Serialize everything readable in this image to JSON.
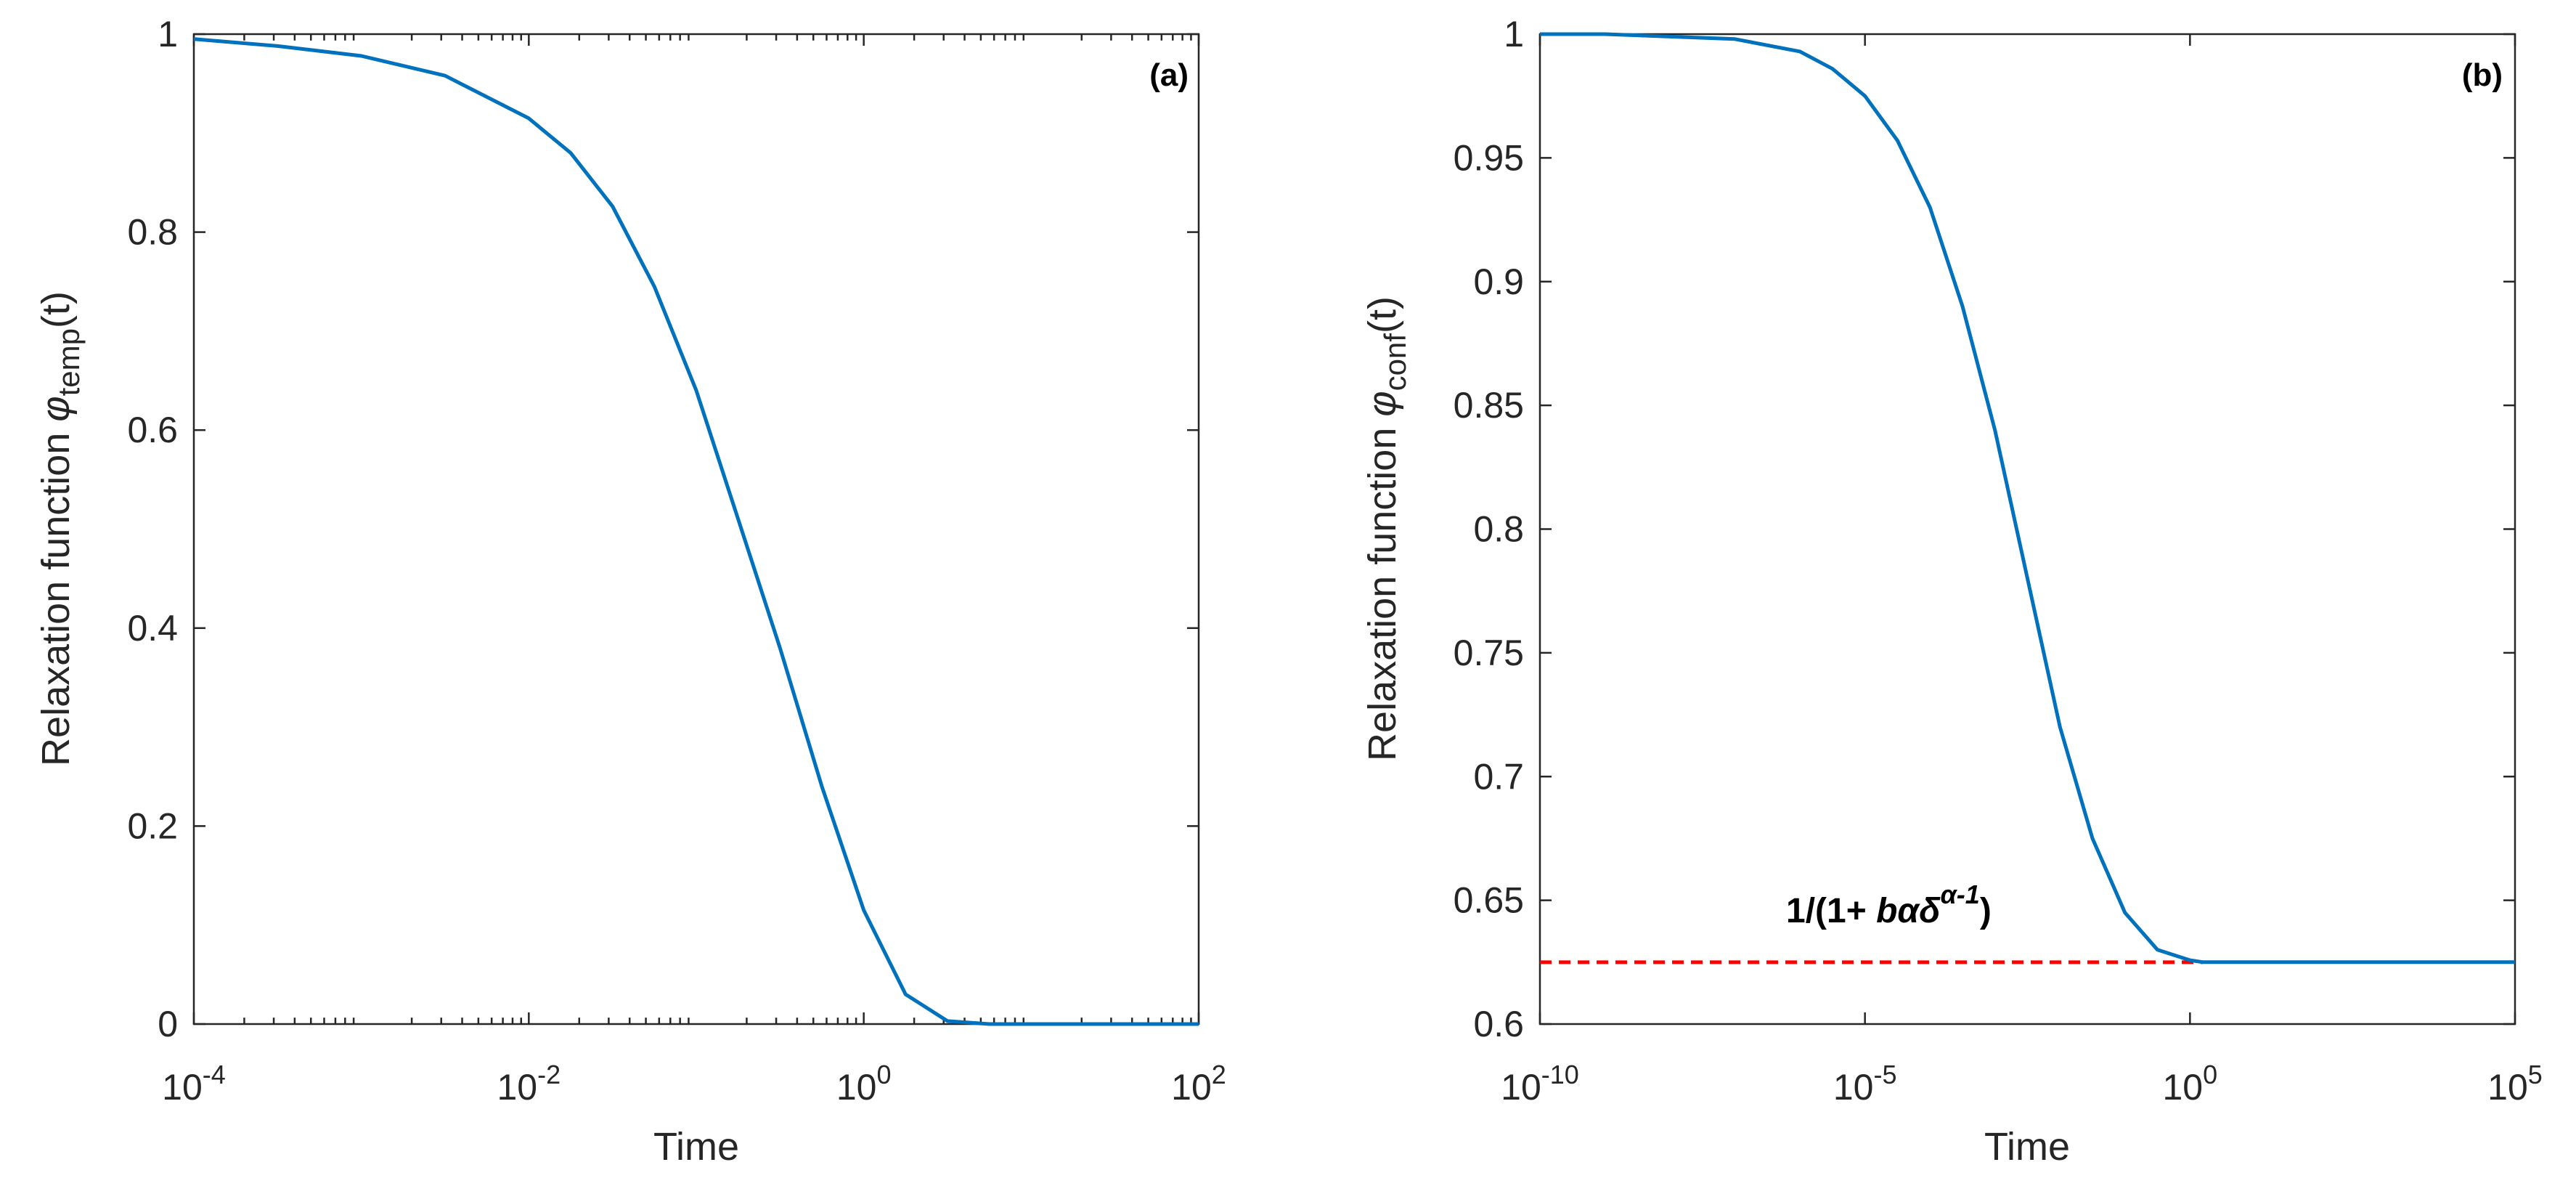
{
  "colors": {
    "curve": "#0072bd",
    "reference": "#ff0000",
    "axes": "#262626"
  },
  "chart_data": [
    {
      "type": "line",
      "panel_label": "(a)",
      "xlabel": "Time",
      "ylabel_main": "Relaxation function ",
      "ylabel_symbol": "φ",
      "ylabel_sub": "temp",
      "ylabel_tail": "(t)",
      "x_scale": "log",
      "xlim_exponent": [
        -4,
        2
      ],
      "ylim": [
        0,
        1
      ],
      "xticks": [
        {
          "exp": -4,
          "base": "10",
          "sup": "-4"
        },
        {
          "exp": -2,
          "base": "10",
          "sup": "-2"
        },
        {
          "exp": 0,
          "base": "10",
          "sup": "0"
        },
        {
          "exp": 2,
          "base": "10",
          "sup": "2"
        }
      ],
      "yticks": [
        {
          "value": 0,
          "label": "0"
        },
        {
          "value": 0.2,
          "label": "0.2"
        },
        {
          "value": 0.4,
          "label": "0.4"
        },
        {
          "value": 0.6,
          "label": "0.6"
        },
        {
          "value": 0.8,
          "label": "0.8"
        },
        {
          "value": 1,
          "label": "1"
        }
      ],
      "series": [
        {
          "name": "phi_temp",
          "points": [
            [
              -4,
              0.995
            ],
            [
              -3.5,
              0.988
            ],
            [
              -3,
              0.978
            ],
            [
              -2.5,
              0.958
            ],
            [
              -2,
              0.915
            ],
            [
              -1.75,
              0.88
            ],
            [
              -1.5,
              0.826
            ],
            [
              -1.25,
              0.745
            ],
            [
              -1,
              0.64
            ],
            [
              -0.75,
              0.51
            ],
            [
              -0.5,
              0.38
            ],
            [
              -0.25,
              0.24
            ],
            [
              0,
              0.115
            ],
            [
              0.25,
              0.03
            ],
            [
              0.5,
              0.003
            ],
            [
              0.75,
              0.0
            ],
            [
              1,
              0.0
            ],
            [
              1.5,
              0.0
            ],
            [
              2,
              0.0
            ]
          ]
        }
      ]
    },
    {
      "type": "line",
      "panel_label": "(b)",
      "xlabel": "Time",
      "ylabel_main": "Relaxation function ",
      "ylabel_symbol": "φ",
      "ylabel_sub": "conf",
      "ylabel_tail": "(t)",
      "x_scale": "log",
      "xlim_exponent": [
        -10,
        5
      ],
      "ylim": [
        0.6,
        1
      ],
      "xticks": [
        {
          "exp": -10,
          "base": "10",
          "sup": "-10"
        },
        {
          "exp": -5,
          "base": "10",
          "sup": "-5"
        },
        {
          "exp": 0,
          "base": "10",
          "sup": "0"
        },
        {
          "exp": 5,
          "base": "10",
          "sup": "5"
        }
      ],
      "yticks": [
        {
          "value": 0.6,
          "label": "0.6"
        },
        {
          "value": 0.65,
          "label": "0.65"
        },
        {
          "value": 0.7,
          "label": "0.7"
        },
        {
          "value": 0.75,
          "label": "0.75"
        },
        {
          "value": 0.8,
          "label": "0.8"
        },
        {
          "value": 0.85,
          "label": "0.85"
        },
        {
          "value": 0.9,
          "label": "0.9"
        },
        {
          "value": 0.95,
          "label": "0.95"
        },
        {
          "value": 1,
          "label": "1"
        }
      ],
      "series": [
        {
          "name": "phi_conf",
          "points": [
            [
              -10,
              1.0
            ],
            [
              -9,
              1.0
            ],
            [
              -8,
              0.999
            ],
            [
              -7,
              0.998
            ],
            [
              -6,
              0.993
            ],
            [
              -5.5,
              0.986
            ],
            [
              -5,
              0.975
            ],
            [
              -4.5,
              0.957
            ],
            [
              -4,
              0.93
            ],
            [
              -3.5,
              0.89
            ],
            [
              -3,
              0.84
            ],
            [
              -2.5,
              0.78
            ],
            [
              -2,
              0.72
            ],
            [
              -1.5,
              0.675
            ],
            [
              -1,
              0.645
            ],
            [
              -0.5,
              0.63
            ],
            [
              0,
              0.6258
            ],
            [
              0.2,
              0.625
            ],
            [
              1,
              0.625
            ],
            [
              3,
              0.625
            ],
            [
              5,
              0.625
            ]
          ]
        }
      ],
      "reference_line": {
        "y": 0.625,
        "x_range_exponent": [
          -10,
          0.2
        ],
        "label_prefix": "1/(1+ ",
        "label_b": "b",
        "label_alpha": "α",
        "label_delta": "δ",
        "label_sup": "α-1",
        "label_suffix": ")"
      }
    }
  ]
}
